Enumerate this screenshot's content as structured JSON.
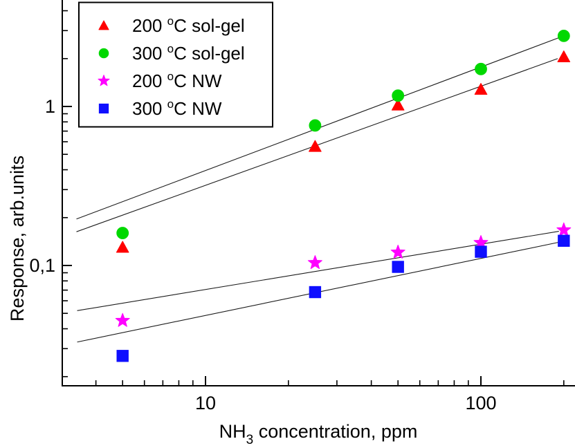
{
  "chart_data": {
    "type": "scatter",
    "title": "",
    "xlabel": {
      "prefix": "NH",
      "sub": "3",
      "suffix": " concentration, ppm"
    },
    "ylabel": "Response, arb.units",
    "x_scale": "log",
    "y_scale": "log",
    "xlim": [
      3,
      220
    ],
    "ylim": [
      0.018,
      4.6
    ],
    "grid": false,
    "legend_position": "top-left",
    "x_major_ticks": [
      {
        "value": 10,
        "label": "10"
      },
      {
        "value": 100,
        "label": "100"
      }
    ],
    "x_minor_ticks": [
      4,
      5,
      6,
      7,
      8,
      9,
      20,
      30,
      40,
      50,
      60,
      70,
      80,
      90,
      200
    ],
    "y_major_ticks": [
      {
        "value": 1,
        "label": "1"
      },
      {
        "value": 0.1,
        "label": "0,1"
      }
    ],
    "y_minor_ticks": [
      4,
      3,
      2,
      0.9,
      0.8,
      0.7,
      0.6,
      0.5,
      0.4,
      0.3,
      0.2,
      0.09,
      0.08,
      0.07,
      0.06,
      0.05,
      0.04,
      0.03,
      0.02
    ],
    "x": [
      5,
      25,
      50,
      100,
      200
    ],
    "series": [
      {
        "name": "200 °C sol-gel",
        "legend": {
          "prefix": "200 ",
          "sup": "o",
          "suffix": "C sol-gel"
        },
        "marker": "triangle",
        "color": "#ff0000",
        "values": [
          0.13,
          0.56,
          1.02,
          1.28,
          2.05
        ]
      },
      {
        "name": "300 °C sol-gel",
        "legend": {
          "prefix": "300 ",
          "sup": "o",
          "suffix": "C sol-gel"
        },
        "marker": "circle",
        "color": "#00d800",
        "values": [
          0.16,
          0.76,
          1.17,
          1.72,
          2.78
        ]
      },
      {
        "name": "200 °C NW",
        "legend": {
          "prefix": "200 ",
          "sup": "o",
          "suffix": "C NW"
        },
        "marker": "star",
        "color": "#ff00ff",
        "values": [
          0.045,
          0.104,
          0.121,
          0.139,
          0.167
        ]
      },
      {
        "name": "300 °C NW",
        "legend": {
          "prefix": "300 ",
          "sup": "o",
          "suffix": "C NW"
        },
        "marker": "square",
        "color": "#0f0fff",
        "values": [
          0.027,
          0.068,
          0.098,
          0.122,
          0.143
        ]
      }
    ],
    "trendlines": [
      {
        "series": "300 °C sol-gel",
        "x1": 3.4,
        "y1": 0.196,
        "x2": 200,
        "y2": 2.78
      },
      {
        "series": "200 °C sol-gel",
        "x1": 3.4,
        "y1": 0.163,
        "x2": 190,
        "y2": 2.0
      },
      {
        "series": "200 °C NW",
        "x1": 3.42,
        "y1": 0.052,
        "x2": 192,
        "y2": 0.164
      },
      {
        "series": "300 °C NW",
        "x1": 3.42,
        "y1": 0.033,
        "x2": 192,
        "y2": 0.14
      }
    ],
    "line_color": "#1a1a1a"
  }
}
